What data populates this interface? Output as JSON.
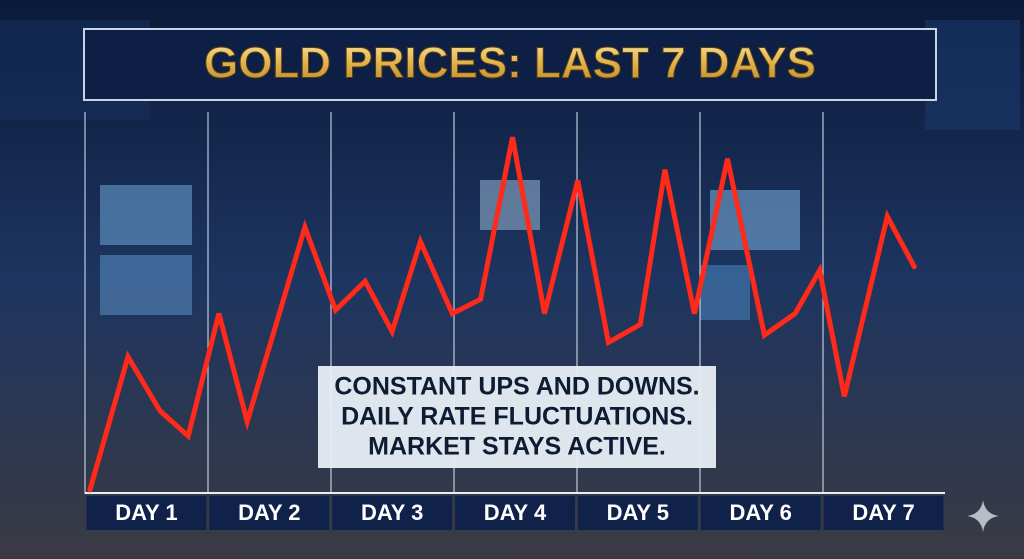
{
  "chart_data": {
    "type": "line",
    "title": "GOLD PRICES: LAST 7 DAYS",
    "annotation": [
      "CONSTANT UPS AND DOWNS.",
      "DAILY RATE FLUCTUATIONS.",
      "MARKET STAYS ACTIVE."
    ],
    "xlim": [
      0.5,
      7.5
    ],
    "xticks": [
      {
        "value": 1,
        "label": "DAY 1"
      },
      {
        "value": 2,
        "label": "DAY 2"
      },
      {
        "value": 3,
        "label": "DAY 3"
      },
      {
        "value": 4,
        "label": "DAY 4"
      },
      {
        "value": 5,
        "label": "DAY 5"
      },
      {
        "value": 6,
        "label": "DAY 6"
      },
      {
        "value": 7,
        "label": "DAY 7"
      }
    ],
    "ylim": [
      0,
      100
    ],
    "series": [
      {
        "color": "#ff2a1a",
        "x": [
          0.54,
          0.85,
          1.11,
          1.34,
          1.59,
          1.82,
          2.29,
          2.54,
          2.78,
          3.0,
          3.23,
          3.49,
          3.72,
          3.98,
          4.24,
          4.51,
          4.76,
          5.02,
          5.22,
          5.46,
          5.73,
          6.03,
          6.28,
          6.48,
          6.68,
          7.03,
          7.25
        ],
        "values": [
          0,
          37,
          22,
          15,
          49,
          19,
          73,
          50,
          58,
          44,
          69,
          49,
          53,
          98,
          49,
          86,
          41,
          46,
          89,
          49,
          92,
          43,
          49,
          61,
          26,
          76,
          62
        ]
      }
    ]
  }
}
